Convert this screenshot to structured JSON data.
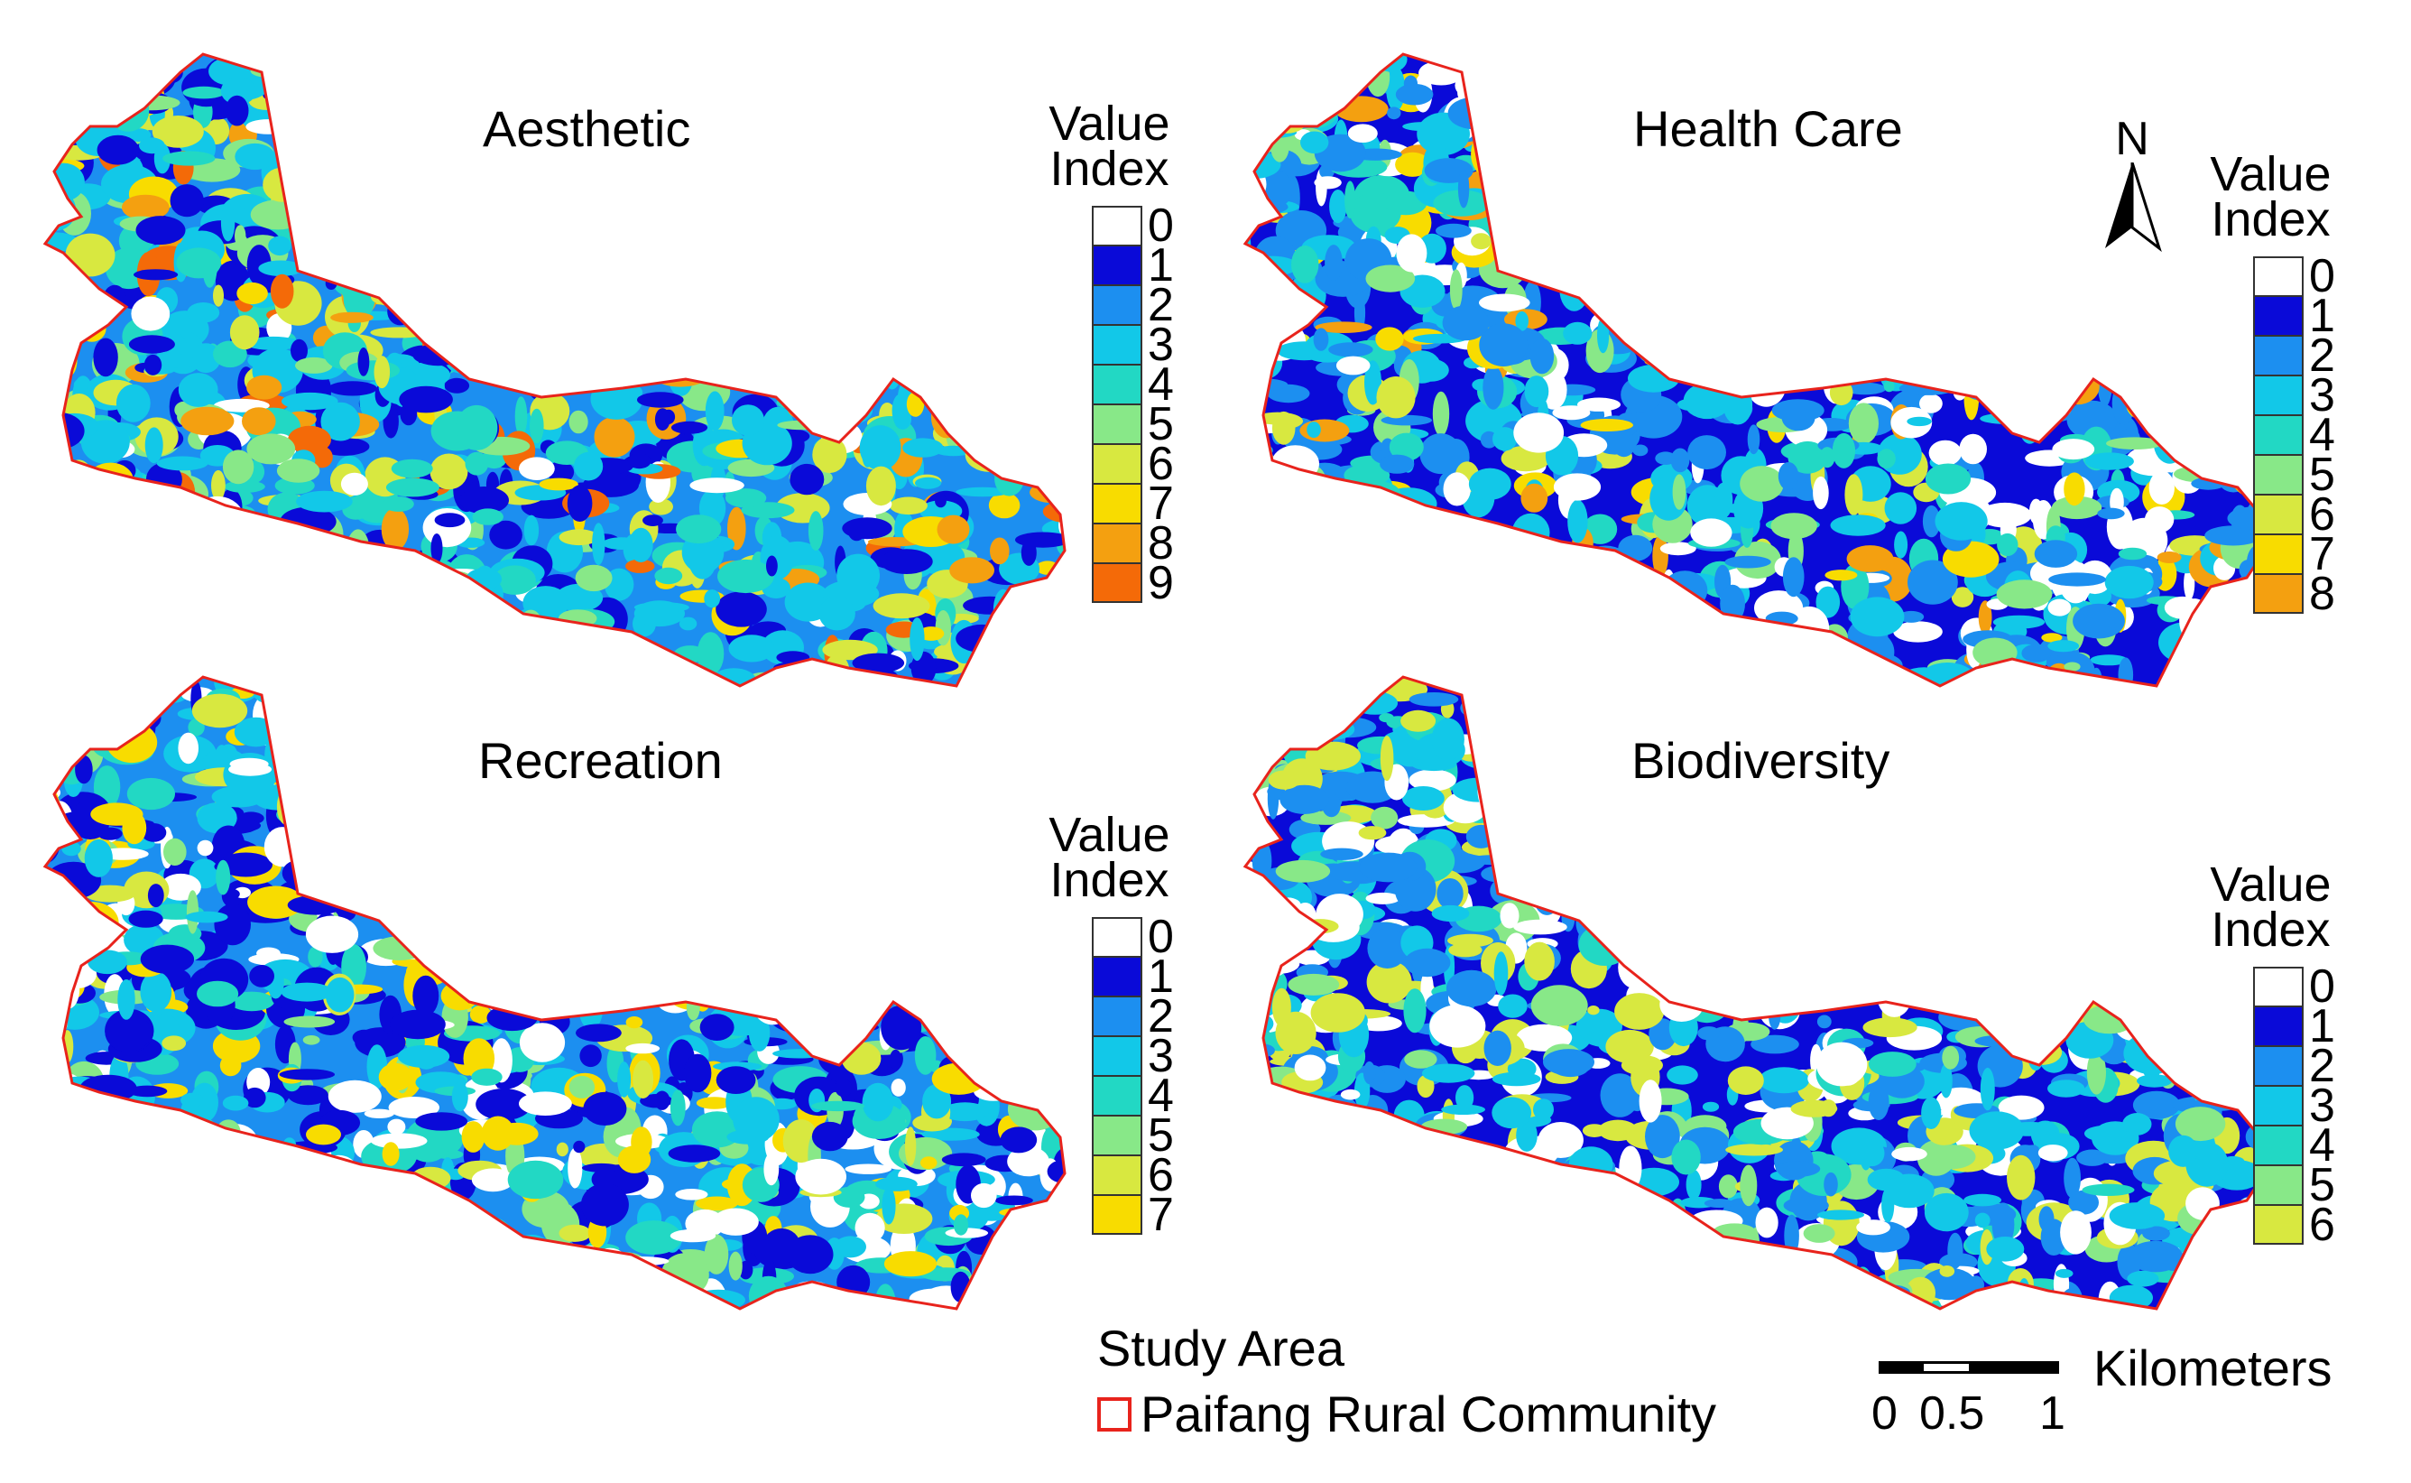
{
  "palette": {
    "0": "#ffffff",
    "1": "#0a0ad8",
    "2": "#1c8ff0",
    "3": "#12c8e8",
    "4": "#22d8c4",
    "5": "#88e888",
    "6": "#d8e840",
    "7": "#f8dc00",
    "8": "#f4a010",
    "9": "#f46a08",
    "boundary": "#e8231c"
  },
  "maps": [
    {
      "title": "Aesthetic",
      "legend_title_line1": "Value",
      "legend_title_line2": "Index",
      "legend_values": [
        "0",
        "1",
        "2",
        "3",
        "4",
        "5",
        "6",
        "7",
        "8",
        "9"
      ],
      "dominant_classes": [
        "2",
        "3",
        "1",
        "4",
        "5",
        "6",
        "7",
        "8",
        "9",
        "0"
      ]
    },
    {
      "title": "Health Care",
      "legend_title_line1": "Value",
      "legend_title_line2": "Index",
      "legend_values": [
        "0",
        "1",
        "2",
        "3",
        "4",
        "5",
        "6",
        "7",
        "8"
      ],
      "dominant_classes": [
        "1",
        "2",
        "3",
        "0",
        "4",
        "5",
        "6",
        "7",
        "8"
      ]
    },
    {
      "title": "Recreation",
      "legend_title_line1": "Value",
      "legend_title_line2": "Index",
      "legend_values": [
        "0",
        "1",
        "2",
        "3",
        "4",
        "5",
        "6",
        "7"
      ],
      "dominant_classes": [
        "2",
        "1",
        "3",
        "0",
        "4",
        "5",
        "6",
        "7"
      ]
    },
    {
      "title": "Biodiversity",
      "legend_title_line1": "Value",
      "legend_title_line2": "Index",
      "legend_values": [
        "0",
        "1",
        "2",
        "3",
        "4",
        "5",
        "6"
      ],
      "dominant_classes": [
        "1",
        "2",
        "3",
        "0",
        "4",
        "5",
        "6"
      ]
    }
  ],
  "north_arrow_label": "N",
  "study_area": {
    "heading": "Study Area",
    "boundary_label": "Paifang Rural Community"
  },
  "scale_bar": {
    "unit": "Kilometers",
    "ticks": [
      "0",
      "0.5",
      "1"
    ]
  }
}
